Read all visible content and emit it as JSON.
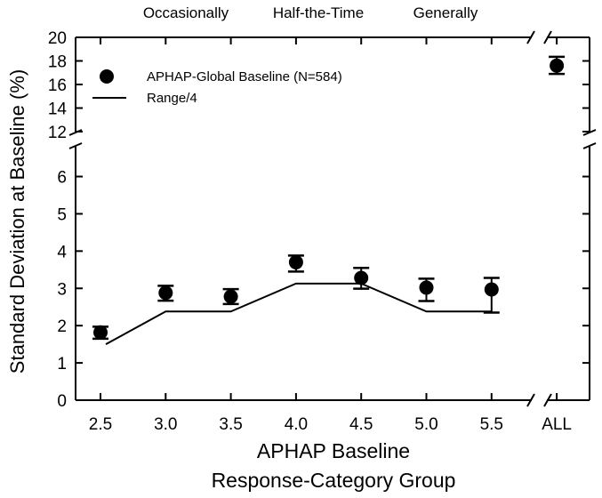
{
  "chart_data": {
    "type": "scatter",
    "title": "",
    "top_labels": [
      "Occasionally",
      "Half-the-Time",
      "Generally"
    ],
    "xlabel_line1": "APHAP Baseline",
    "xlabel_line2": "Response-Category Group",
    "ylabel": "Standard Deviation at Baseline (%)",
    "categories": [
      "2.5",
      "3.0",
      "3.5",
      "4.0",
      "4.5",
      "5.0",
      "5.5",
      "ALL"
    ],
    "lower_ylim": [
      0,
      6.8
    ],
    "lower_yticks": [
      "0",
      "1",
      "2",
      "3",
      "4",
      "5",
      "6"
    ],
    "upper_ylim": [
      12,
      20
    ],
    "upper_yticks": [
      "12",
      "14",
      "16",
      "18",
      "20"
    ],
    "legend": {
      "points_label": "APHAP-Global Baseline (N=584)",
      "line_label": "Range/4",
      "position": "top-left"
    },
    "series": [
      {
        "name": "APHAP-Global Baseline (N=584)",
        "kind": "points_with_error_bars",
        "values": [
          1.82,
          2.88,
          2.78,
          3.7,
          3.28,
          3.02,
          2.97,
          17.6
        ],
        "err_low": [
          1.65,
          2.67,
          2.58,
          3.45,
          2.99,
          2.66,
          2.35,
          16.9
        ],
        "err_high": [
          1.97,
          3.07,
          2.98,
          3.88,
          3.55,
          3.26,
          3.28,
          18.35
        ]
      },
      {
        "name": "Range/4",
        "kind": "line",
        "x": [
          2.5,
          3.0,
          3.5,
          4.0,
          4.5,
          5.0,
          5.5
        ],
        "values": [
          1.5,
          2.38,
          2.38,
          3.13,
          3.13,
          2.38,
          2.38
        ]
      }
    ]
  }
}
